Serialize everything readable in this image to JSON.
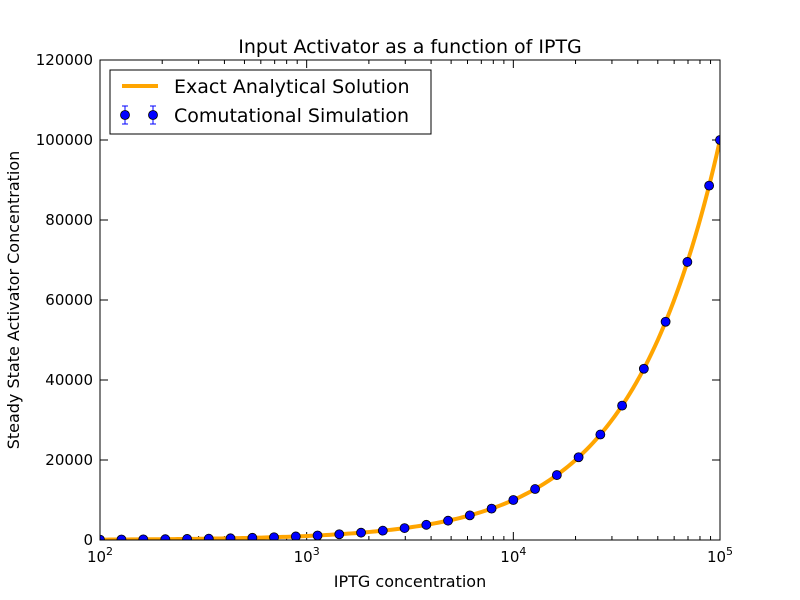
{
  "chart_data": {
    "type": "line",
    "title": "Input Activator as a function of IPTG",
    "xlabel": "IPTG concentration",
    "ylabel": "Steady State Activator Concentration",
    "xscale": "log",
    "xlim": [
      100,
      100000
    ],
    "ylim": [
      0,
      120000
    ],
    "y_ticks": [
      0,
      20000,
      40000,
      60000,
      80000,
      100000,
      120000
    ],
    "y_tick_labels": [
      "0",
      "20000",
      "40000",
      "60000",
      "80000",
      "100000",
      "120000"
    ],
    "x_ticks": [
      100,
      1000,
      10000,
      100000
    ],
    "x_tick_labels": [
      {
        "base": "10",
        "exp": "2"
      },
      {
        "base": "10",
        "exp": "3"
      },
      {
        "base": "10",
        "exp": "4"
      },
      {
        "base": "10",
        "exp": "5"
      }
    ],
    "grid": false,
    "legend_position": "upper-left",
    "series": [
      {
        "name": "Exact Analytical Solution",
        "style": "line",
        "color": "#FFA500",
        "relation": "y = x",
        "x": [
          100,
          100000
        ]
      },
      {
        "name": "Comutational Simulation",
        "style": "points-errorbars",
        "color": "#0000FF",
        "x": [
          100,
          127,
          162,
          207,
          264,
          336,
          428,
          546,
          695,
          886,
          1129,
          1438,
          1833,
          2336,
          2976,
          3793,
          4833,
          6158,
          7848,
          10000,
          12743,
          16238,
          20691,
          26367,
          33598,
          42813,
          54556,
          69519,
          88587,
          100000
        ],
        "y": [
          100,
          127,
          162,
          207,
          264,
          336,
          428,
          546,
          695,
          886,
          1129,
          1438,
          1833,
          2336,
          2976,
          3793,
          4833,
          6158,
          7848,
          10000,
          12743,
          16238,
          20691,
          26367,
          33598,
          42813,
          54556,
          69519,
          88587,
          100000
        ]
      }
    ]
  }
}
